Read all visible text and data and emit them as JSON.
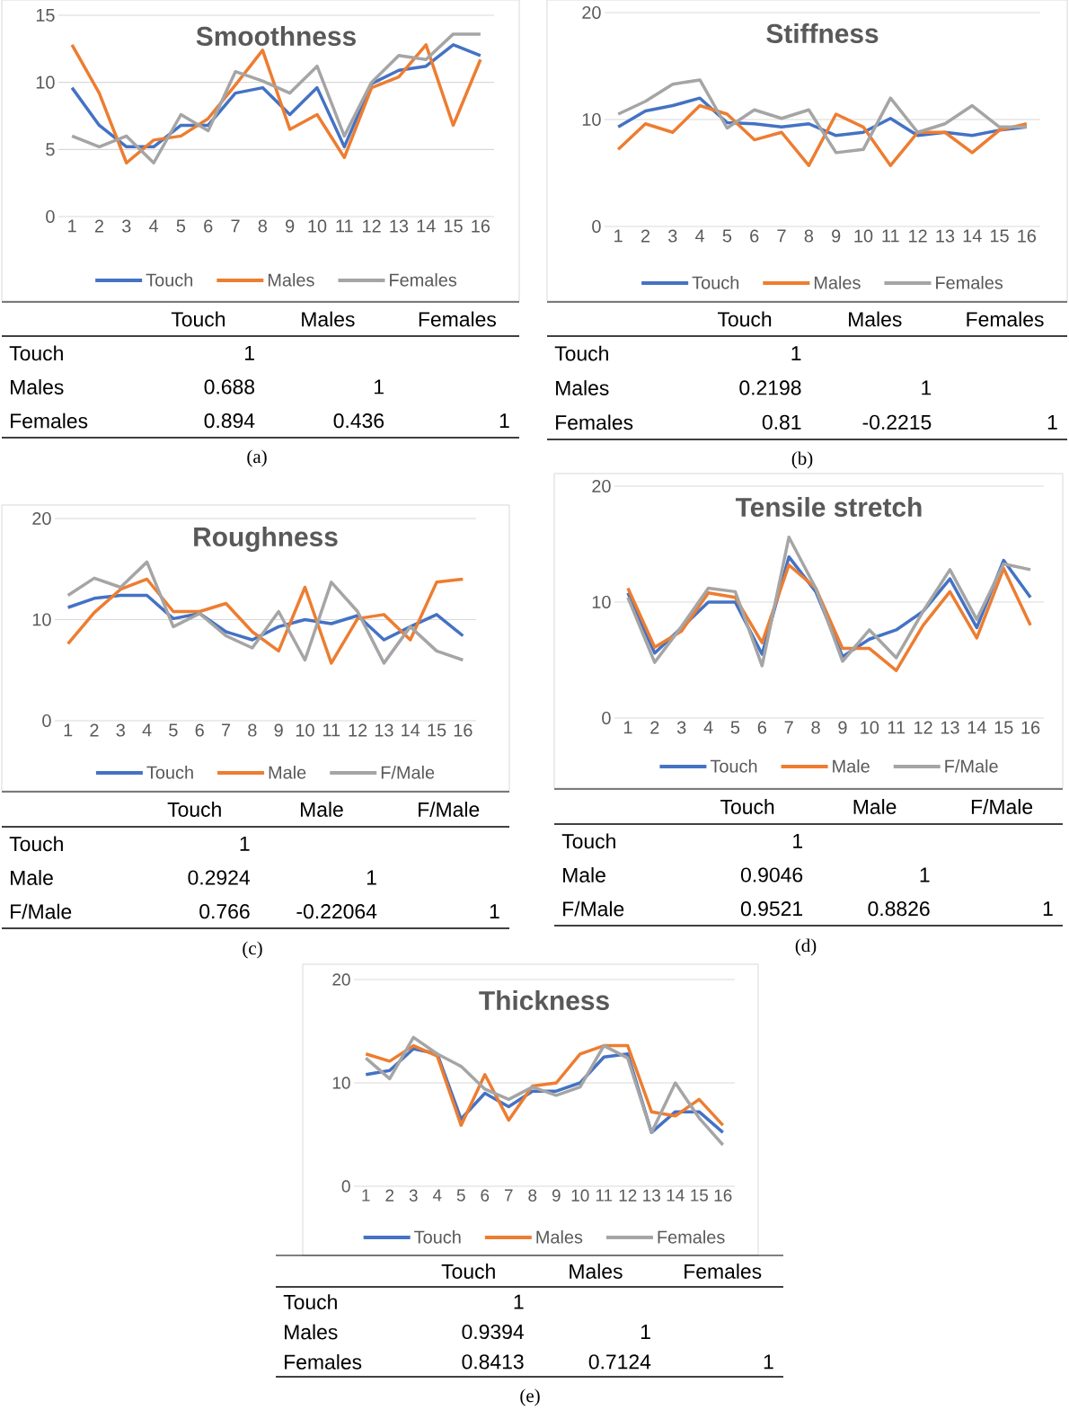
{
  "chart_data": [
    {
      "type": "line",
      "title": "Smoothness",
      "categories": [
        "1",
        "2",
        "3",
        "4",
        "5",
        "6",
        "7",
        "8",
        "9",
        "10",
        "11",
        "12",
        "13",
        "14",
        "15",
        "16"
      ],
      "ylim": [
        0,
        15
      ],
      "yticks": [
        0,
        5,
        10,
        15
      ],
      "grid": "y",
      "legend": "bottom",
      "marker": "none",
      "series": [
        {
          "name": "Touch",
          "color": "#4472c4",
          "values": [
            9.6,
            6.8,
            5.2,
            5.2,
            6.8,
            6.8,
            9.2,
            9.6,
            7.6,
            9.6,
            5.2,
            9.9,
            10.9,
            11.2,
            12.8,
            12.0
          ]
        },
        {
          "name": "Males",
          "color": "#ed7d31",
          "values": [
            12.8,
            9.2,
            4.0,
            5.7,
            6.0,
            7.3,
            9.8,
            12.4,
            6.5,
            7.6,
            4.4,
            9.6,
            10.4,
            12.8,
            6.8,
            11.7
          ]
        },
        {
          "name": "Females",
          "color": "#a5a5a5",
          "values": [
            6.0,
            5.2,
            6.0,
            4.0,
            7.6,
            6.4,
            10.8,
            10.1,
            9.2,
            11.2,
            6.0,
            10.0,
            12.0,
            11.7,
            13.6,
            13.6
          ]
        }
      ],
      "annotations": [
        "Touch",
        "Males",
        "Females",
        "Touch",
        "1",
        "Males",
        "0.688",
        "1",
        "Females",
        "0.894",
        "0.436",
        "1",
        "(a)"
      ]
    },
    {
      "type": "line",
      "title": "Stiffness",
      "categories": [
        "1",
        "2",
        "3",
        "4",
        "5",
        "6",
        "7",
        "8",
        "9",
        "10",
        "11",
        "12",
        "13",
        "14",
        "15",
        "16"
      ],
      "ylim": [
        0,
        20
      ],
      "yticks": [
        0,
        10,
        20
      ],
      "grid": "y",
      "legend": "bottom",
      "marker": "none",
      "series": [
        {
          "name": "Touch",
          "color": "#4472c4",
          "values": [
            9.3,
            10.8,
            11.3,
            12.0,
            9.7,
            9.6,
            9.3,
            9.6,
            8.5,
            8.8,
            10.1,
            8.5,
            8.8,
            8.5,
            9.0,
            9.3
          ]
        },
        {
          "name": "Males",
          "color": "#ed7d31",
          "values": [
            7.2,
            9.6,
            8.8,
            11.3,
            10.5,
            8.1,
            8.8,
            5.7,
            10.5,
            9.3,
            5.7,
            8.8,
            8.8,
            6.9,
            9.0,
            9.6
          ]
        },
        {
          "name": "Females",
          "color": "#a5a5a5",
          "values": [
            10.5,
            11.7,
            13.3,
            13.7,
            9.2,
            10.9,
            10.1,
            10.9,
            6.9,
            7.2,
            12.0,
            8.8,
            9.6,
            11.3,
            9.3,
            9.3
          ]
        }
      ],
      "annotations": [
        "Touch",
        "Males",
        "Females",
        "Touch",
        "1",
        "Males",
        "0.2198",
        "1",
        "Females",
        "0.81",
        "-0.2215",
        "1",
        "(b)"
      ]
    },
    {
      "type": "line",
      "title": "Roughness",
      "categories": [
        "1",
        "2",
        "3",
        "4",
        "5",
        "6",
        "7",
        "8",
        "9",
        "10",
        "11",
        "12",
        "13",
        "14",
        "15",
        "16"
      ],
      "ylim": [
        0,
        20
      ],
      "yticks": [
        0,
        10,
        20
      ],
      "grid": "y",
      "legend": "bottom",
      "marker": "none",
      "series": [
        {
          "name": "Touch",
          "color": "#4472c4",
          "values": [
            11.2,
            12.1,
            12.4,
            12.4,
            10.1,
            10.6,
            8.8,
            8.0,
            9.3,
            10.0,
            9.6,
            10.4,
            8.0,
            9.3,
            10.5,
            8.4
          ]
        },
        {
          "name": "Male",
          "color": "#ed7d31",
          "values": [
            7.6,
            10.7,
            13.0,
            14.0,
            10.8,
            10.8,
            11.6,
            8.8,
            6.9,
            13.2,
            5.7,
            10.1,
            10.5,
            8.0,
            13.7,
            14.0
          ]
        },
        {
          "name": "F/Male",
          "color": "#a5a5a5",
          "values": [
            12.4,
            14.1,
            13.2,
            15.7,
            9.3,
            10.6,
            8.4,
            7.2,
            10.8,
            6.0,
            13.7,
            10.8,
            5.7,
            9.3,
            6.9,
            6.0
          ]
        }
      ],
      "annotations": [
        "Touch",
        "Male",
        "F/Male",
        "Touch",
        "1",
        "Male",
        "0.2924",
        "1",
        "F/Male",
        "0.766",
        "-0.22064",
        "1",
        "(c)"
      ]
    },
    {
      "type": "line",
      "title": "Tensile stretch",
      "categories": [
        "1",
        "2",
        "3",
        "4",
        "5",
        "6",
        "7",
        "8",
        "9",
        "10",
        "11",
        "12",
        "13",
        "14",
        "15",
        "16"
      ],
      "ylim": [
        0,
        20
      ],
      "yticks": [
        0,
        10,
        20
      ],
      "grid": "y",
      "legend": "bottom",
      "marker": "none",
      "series": [
        {
          "name": "Touch",
          "color": "#4472c4",
          "values": [
            10.8,
            5.6,
            7.8,
            10.0,
            10.0,
            5.5,
            13.9,
            10.9,
            5.3,
            6.8,
            7.6,
            9.2,
            12.0,
            7.8,
            13.6,
            10.4
          ]
        },
        {
          "name": "Male",
          "color": "#ed7d31",
          "values": [
            11.2,
            6.1,
            7.5,
            10.8,
            10.4,
            6.5,
            13.2,
            11.2,
            6.0,
            6.0,
            4.1,
            8.0,
            10.9,
            6.9,
            12.9,
            8.0
          ]
        },
        {
          "name": "F/Male",
          "color": "#a5a5a5",
          "values": [
            10.4,
            4.8,
            7.9,
            11.2,
            10.9,
            4.5,
            15.6,
            11.2,
            4.9,
            7.6,
            5.2,
            9.2,
            12.8,
            8.5,
            13.3,
            12.8
          ]
        }
      ],
      "annotations": [
        "Touch",
        "Male",
        "F/Male",
        "Touch",
        "1",
        "Male",
        "0.9046",
        "1",
        "F/Male",
        "0.9521",
        "0.8826",
        "1",
        "(d)"
      ]
    },
    {
      "type": "line",
      "title": "Thickness",
      "categories": [
        "1",
        "2",
        "3",
        "4",
        "5",
        "6",
        "7",
        "8",
        "9",
        "10",
        "11",
        "12",
        "13",
        "14",
        "15",
        "16"
      ],
      "ylim": [
        0,
        20
      ],
      "yticks": [
        0,
        10,
        20
      ],
      "grid": "y",
      "legend": "bottom",
      "marker": "none",
      "series": [
        {
          "name": "Touch",
          "color": "#4472c4",
          "values": [
            10.8,
            11.2,
            13.3,
            12.8,
            6.5,
            9.0,
            7.7,
            9.2,
            9.2,
            10.0,
            12.5,
            12.8,
            5.2,
            7.2,
            7.2,
            5.2
          ]
        },
        {
          "name": "Males",
          "color": "#ed7d31",
          "values": [
            12.8,
            12.1,
            13.6,
            12.6,
            5.9,
            10.8,
            6.4,
            9.7,
            10.0,
            12.8,
            13.6,
            13.6,
            7.2,
            6.8,
            8.4,
            5.9
          ]
        },
        {
          "name": "Females",
          "color": "#a5a5a5",
          "values": [
            12.4,
            10.4,
            14.4,
            12.8,
            11.6,
            9.4,
            8.4,
            9.6,
            8.8,
            9.6,
            13.6,
            12.4,
            5.2,
            10.0,
            6.6,
            4.0
          ]
        }
      ],
      "annotations": [
        "Touch",
        "Males",
        "Females",
        "Touch",
        "1",
        "Males",
        "0.9394",
        "1",
        "Females",
        "0.8413",
        "0.7124",
        "1",
        "(e)"
      ]
    }
  ]
}
